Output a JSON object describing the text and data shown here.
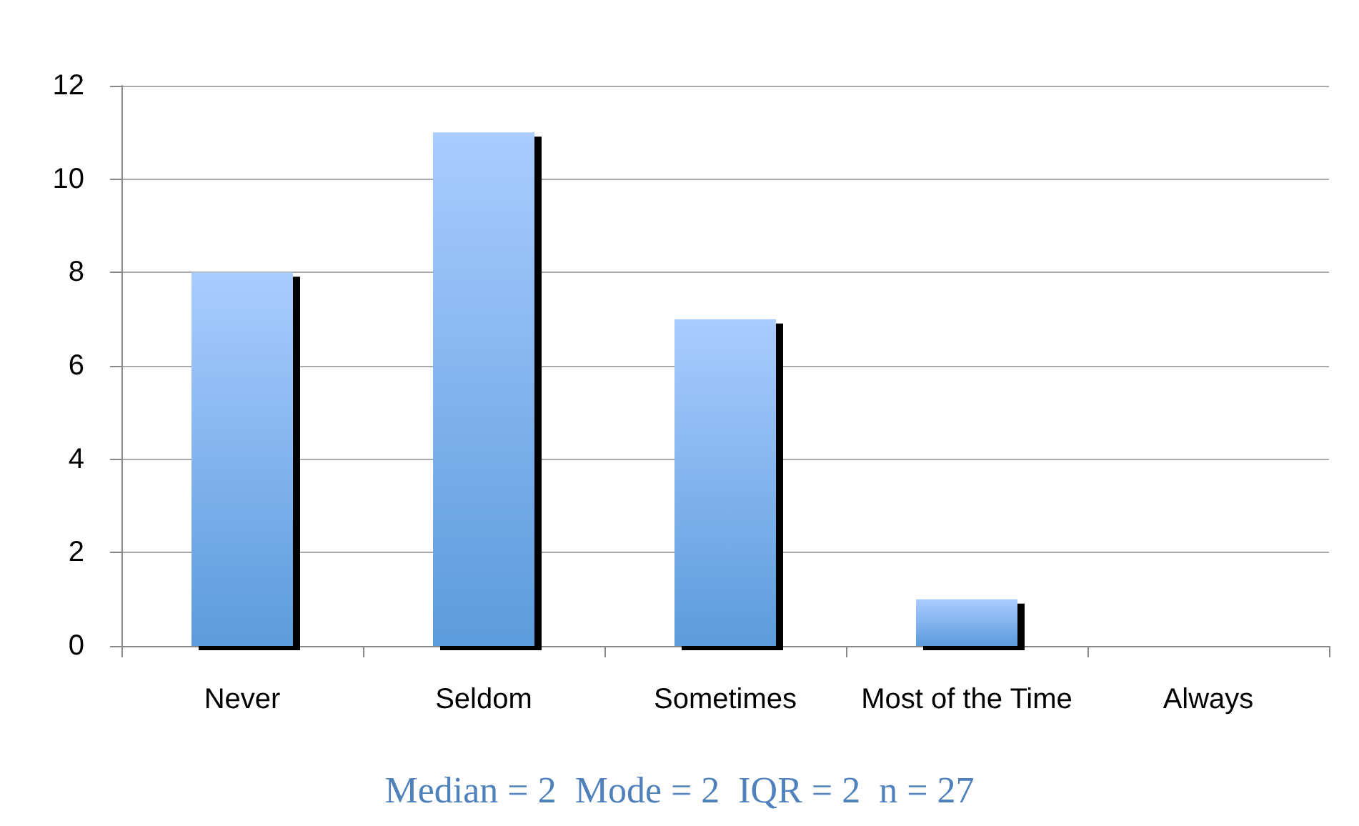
{
  "chart_data": {
    "type": "bar",
    "categories": [
      "Never",
      "Seldom",
      "Sometimes",
      "Most of the Time",
      "Always"
    ],
    "values": [
      8,
      11,
      7,
      1,
      0
    ],
    "color": "#5b9bdc",
    "ylim": [
      0,
      12
    ],
    "yticks": [
      0,
      2,
      4,
      6,
      8,
      10,
      12
    ],
    "grid": "y",
    "annotations": [
      "Median = 2  Mode = 2  IQR = 2  n = 27"
    ]
  }
}
